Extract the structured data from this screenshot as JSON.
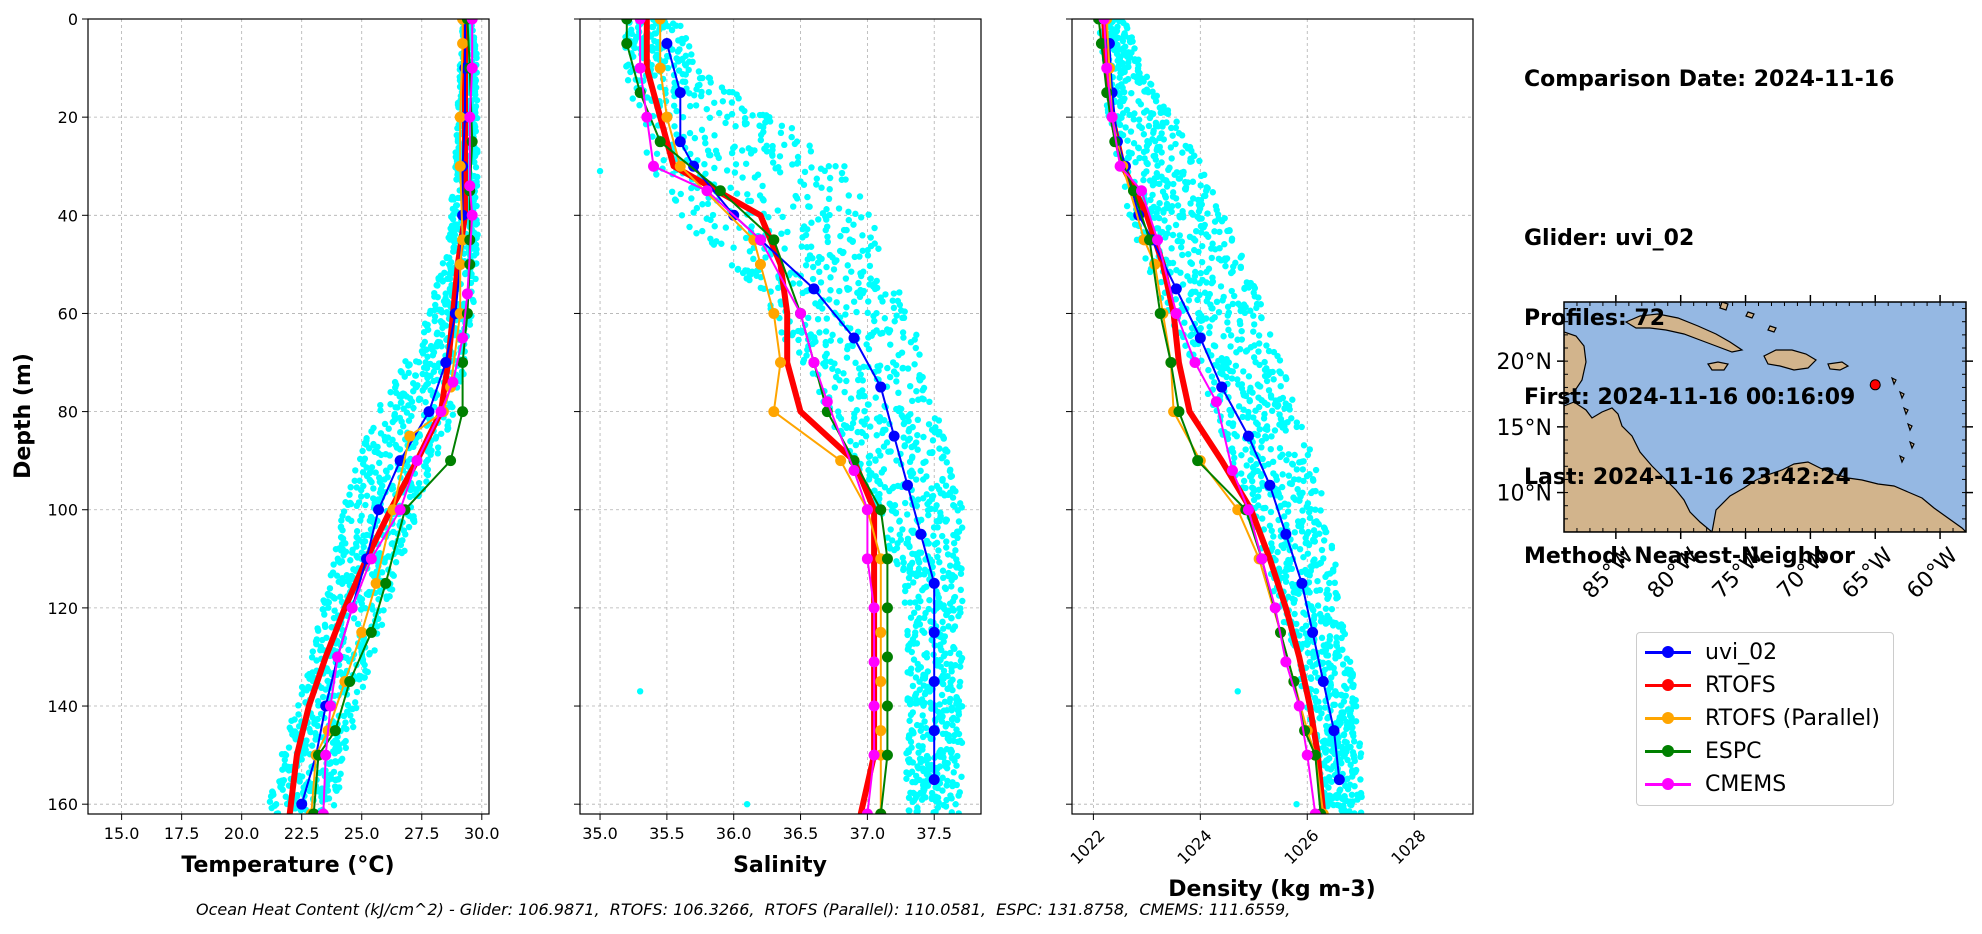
{
  "info": {
    "comparison_date": "Comparison Date: 2024-11-16",
    "glider": "Glider: uvi_02",
    "profiles": "Profiles: 72",
    "first": "First: 2024-11-16 00:16:09",
    "last": "Last: 2024-11-16 23:42:24",
    "method": "Method: Nearest-Neighbor"
  },
  "footer": "Ocean Heat Content (kJ/cm^2) - Glider: 106.9871,  RTOFS: 106.3266,  RTOFS (Parallel): 110.0581,  ESPC: 131.8758,  CMEMS: 111.6559,",
  "colors": {
    "glider": "#0000ff",
    "rtofs": "#ff0000",
    "rtofs_parallel": "#ffa500",
    "espc": "#008000",
    "cmems": "#ff00ff",
    "glider_scatter": "#00ffff",
    "ocean": "#95b8e3",
    "land": "#d2b48c",
    "grid": "#b0b0b0"
  },
  "legend": [
    {
      "label": "uvi_02",
      "color": "#0000ff"
    },
    {
      "label": "RTOFS",
      "color": "#ff0000"
    },
    {
      "label": "RTOFS (Parallel)",
      "color": "#ffa500"
    },
    {
      "label": "ESPC",
      "color": "#008000"
    },
    {
      "label": "CMEMS",
      "color": "#ff00ff"
    }
  ],
  "chart_data": [
    {
      "type": "line",
      "panel": "temperature",
      "xlabel": "Temperature (°C)",
      "ylabel": "Depth (m)",
      "xlim": [
        13.6,
        30.3
      ],
      "ylim": [
        162,
        0
      ],
      "xticks": [
        "15.0",
        "17.5",
        "20.0",
        "22.5",
        "25.0",
        "27.5",
        "30.0"
      ],
      "xtick_values": [
        15.0,
        17.5,
        20.0,
        22.5,
        25.0,
        27.5,
        30.0
      ],
      "yticks": [
        "0",
        "20",
        "40",
        "60",
        "80",
        "100",
        "120",
        "140",
        "160"
      ],
      "ytick_values": [
        0,
        20,
        40,
        60,
        80,
        100,
        120,
        140,
        160
      ],
      "grid": true,
      "scatter_band": {
        "depth": [
          0,
          10,
          20,
          30,
          40,
          50,
          60,
          70,
          80,
          90,
          100,
          110,
          120,
          130,
          140,
          150,
          162
        ],
        "low": [
          29.2,
          29.1,
          29.0,
          28.9,
          28.7,
          28.4,
          27.8,
          26.8,
          25.7,
          24.9,
          24.3,
          23.9,
          23.4,
          22.9,
          22.3,
          21.7,
          21.1
        ],
        "high": [
          29.7,
          29.8,
          29.8,
          29.8,
          29.8,
          29.8,
          29.6,
          29.3,
          28.8,
          28.0,
          27.3,
          26.6,
          26.0,
          25.4,
          24.8,
          24.3,
          23.8
        ]
      },
      "series": [
        {
          "name": "uvi_02",
          "color": "#0000ff",
          "width": 2,
          "x": [
            29.3,
            29.3,
            29.3,
            29.2,
            29.2,
            29.1,
            28.9,
            28.5,
            27.8,
            26.6,
            25.7,
            25.2,
            24.6,
            24.0,
            23.5,
            23.1,
            22.5
          ],
          "y": [
            0,
            10,
            20,
            30,
            40,
            50,
            60,
            70,
            80,
            90,
            100,
            110,
            120,
            130,
            140,
            150,
            160
          ]
        },
        {
          "name": "RTOFS",
          "color": "#ff0000",
          "width": 6,
          "markers": false,
          "x": [
            29.3,
            29.3,
            29.3,
            29.3,
            29.3,
            29.0,
            28.8,
            28.6,
            28.3,
            27.3,
            26.2,
            25.2,
            24.3,
            23.5,
            22.8,
            22.3,
            22.0
          ],
          "y": [
            0,
            10,
            20,
            30,
            40,
            50,
            60,
            70,
            80,
            90,
            100,
            110,
            120,
            130,
            140,
            150,
            162
          ]
        },
        {
          "name": "RTOFS (Parallel)",
          "color": "#ffa500",
          "width": 2,
          "x": [
            29.2,
            29.2,
            29.1,
            29.1,
            29.2,
            29.1,
            29.1,
            28.7,
            28.4,
            27.0,
            26.3,
            25.6,
            25.0,
            24.3,
            23.6,
            23.1,
            22.9
          ],
          "y": [
            0,
            5,
            20,
            30,
            45,
            50,
            60,
            75,
            80,
            85,
            100,
            115,
            125,
            135,
            145,
            150,
            162
          ]
        },
        {
          "name": "ESPC",
          "color": "#008000",
          "width": 2,
          "x": [
            29.4,
            29.5,
            29.6,
            29.5,
            29.5,
            29.5,
            29.4,
            29.2,
            29.2,
            28.7,
            26.8,
            26.0,
            25.4,
            24.5,
            23.9,
            23.2,
            23.0
          ],
          "y": [
            0,
            10,
            25,
            35,
            45,
            50,
            60,
            70,
            80,
            90,
            100,
            115,
            125,
            135,
            145,
            150,
            162
          ]
        },
        {
          "name": "CMEMS",
          "color": "#ff00ff",
          "width": 2,
          "x": [
            29.6,
            29.6,
            29.5,
            29.5,
            29.6,
            29.4,
            29.2,
            28.8,
            28.3,
            27.3,
            26.6,
            25.4,
            24.6,
            24.0,
            23.7,
            23.5,
            23.4
          ],
          "y": [
            0,
            10,
            20,
            34,
            40,
            56,
            65,
            74,
            80,
            90,
            100,
            110,
            120,
            130,
            140,
            150,
            162
          ]
        }
      ]
    },
    {
      "type": "line",
      "panel": "salinity",
      "xlabel": "Salinity",
      "xlim": [
        34.85,
        37.85
      ],
      "ylim": [
        162,
        0
      ],
      "xticks": [
        "35.0",
        "35.5",
        "36.0",
        "36.5",
        "37.0",
        "37.5"
      ],
      "xtick_values": [
        35.0,
        35.5,
        36.0,
        36.5,
        37.0,
        37.5
      ],
      "grid": true,
      "scatter_band": {
        "depth": [
          0,
          10,
          20,
          30,
          40,
          50,
          60,
          70,
          80,
          90,
          100,
          110,
          120,
          130,
          140,
          150,
          162
        ],
        "low": [
          35.2,
          35.2,
          35.3,
          35.4,
          35.6,
          36.0,
          36.3,
          36.5,
          36.7,
          36.9,
          37.1,
          37.2,
          37.3,
          37.3,
          37.3,
          37.3,
          37.3
        ],
        "high": [
          35.6,
          35.7,
          36.3,
          36.8,
          37.0,
          37.1,
          37.3,
          37.4,
          37.5,
          37.6,
          37.7,
          37.7,
          37.7,
          37.7,
          37.7,
          37.7,
          37.7
        ]
      },
      "outliers": [
        [
          35.0,
          31
        ],
        [
          35.3,
          137
        ],
        [
          36.1,
          160
        ]
      ],
      "series": [
        {
          "name": "uvi_02",
          "color": "#0000ff",
          "width": 2,
          "x": [
            35.5,
            35.6,
            35.6,
            35.7,
            36.0,
            36.2,
            36.6,
            36.9,
            37.1,
            37.2,
            37.3,
            37.4,
            37.5,
            37.5,
            37.5,
            37.5,
            37.5
          ],
          "y": [
            5,
            15,
            25,
            30,
            40,
            45,
            55,
            65,
            75,
            85,
            95,
            105,
            115,
            125,
            135,
            145,
            155
          ]
        },
        {
          "name": "RTOFS",
          "color": "#ff0000",
          "width": 6,
          "markers": false,
          "x": [
            35.35,
            35.35,
            35.45,
            35.55,
            36.2,
            36.35,
            36.4,
            36.4,
            36.5,
            36.9,
            37.05,
            37.05,
            37.05,
            37.05,
            37.05,
            37.05,
            36.95
          ],
          "y": [
            0,
            10,
            20,
            30,
            40,
            50,
            60,
            70,
            80,
            90,
            100,
            110,
            120,
            130,
            140,
            150,
            162
          ]
        },
        {
          "name": "RTOFS (Parallel)",
          "color": "#ffa500",
          "width": 2,
          "x": [
            35.45,
            35.45,
            35.5,
            35.6,
            36.15,
            36.2,
            36.3,
            36.35,
            36.3,
            36.8,
            37.0,
            37.1,
            37.1,
            37.1,
            37.1,
            37.1,
            37.1
          ],
          "y": [
            0,
            10,
            20,
            30,
            45,
            50,
            60,
            70,
            80,
            90,
            100,
            110,
            125,
            135,
            145,
            150,
            162
          ]
        },
        {
          "name": "ESPC",
          "color": "#008000",
          "width": 2,
          "x": [
            35.2,
            35.2,
            35.3,
            35.45,
            35.9,
            36.3,
            36.5,
            36.6,
            36.7,
            36.9,
            37.1,
            37.15,
            37.15,
            37.15,
            37.15,
            37.15,
            37.1
          ],
          "y": [
            0,
            5,
            15,
            25,
            35,
            45,
            60,
            70,
            80,
            90,
            100,
            110,
            120,
            130,
            140,
            150,
            162
          ]
        },
        {
          "name": "CMEMS",
          "color": "#ff00ff",
          "width": 2,
          "x": [
            35.3,
            35.3,
            35.35,
            35.4,
            35.8,
            36.2,
            36.5,
            36.6,
            36.7,
            36.9,
            37.0,
            37.0,
            37.05,
            37.05,
            37.05,
            37.05,
            37.0
          ],
          "y": [
            0,
            10,
            20,
            30,
            35,
            45,
            60,
            70,
            78,
            92,
            100,
            110,
            120,
            131,
            140,
            150,
            162
          ]
        }
      ]
    },
    {
      "type": "line",
      "panel": "density",
      "xlabel": "Density (kg m-3)",
      "xlim": [
        1021.6,
        1029.1
      ],
      "ylim": [
        162,
        0
      ],
      "xticks": [
        "1022",
        "1024",
        "1026",
        "1028"
      ],
      "xtick_values": [
        1022,
        1024,
        1026,
        1028
      ],
      "grid": true,
      "scatter_band": {
        "depth": [
          0,
          10,
          20,
          30,
          40,
          50,
          60,
          70,
          80,
          90,
          100,
          110,
          120,
          130,
          140,
          150,
          162
        ],
        "low": [
          1022.1,
          1022.2,
          1022.3,
          1022.5,
          1022.7,
          1023.0,
          1023.4,
          1023.9,
          1024.3,
          1024.6,
          1024.9,
          1025.2,
          1025.5,
          1025.8,
          1026.0,
          1026.2,
          1026.3
        ],
        "high": [
          1022.6,
          1022.9,
          1023.5,
          1024.0,
          1024.4,
          1024.8,
          1025.2,
          1025.5,
          1025.8,
          1026.1,
          1026.3,
          1026.5,
          1026.6,
          1026.8,
          1026.9,
          1027.0,
          1027.0
        ]
      },
      "outliers": [
        [
          1024.7,
          137
        ],
        [
          1025.8,
          160
        ]
      ],
      "series": [
        {
          "name": "uvi_02",
          "color": "#0000ff",
          "width": 2,
          "x": [
            1022.3,
            1022.35,
            1022.45,
            1022.6,
            1022.85,
            1023.1,
            1023.55,
            1024.0,
            1024.4,
            1024.9,
            1025.3,
            1025.6,
            1025.9,
            1026.1,
            1026.3,
            1026.5,
            1026.6
          ],
          "y": [
            5,
            15,
            25,
            30,
            40,
            45,
            55,
            65,
            75,
            85,
            95,
            105,
            115,
            125,
            135,
            145,
            155
          ]
        },
        {
          "name": "RTOFS",
          "color": "#ff0000",
          "width": 6,
          "markers": false,
          "x": [
            1022.2,
            1022.25,
            1022.35,
            1022.55,
            1023.0,
            1023.3,
            1023.5,
            1023.6,
            1023.8,
            1024.4,
            1024.95,
            1025.3,
            1025.6,
            1025.85,
            1026.05,
            1026.2,
            1026.3
          ],
          "y": [
            0,
            10,
            20,
            30,
            40,
            50,
            60,
            70,
            80,
            90,
            100,
            110,
            120,
            130,
            140,
            150,
            162
          ]
        },
        {
          "name": "RTOFS (Parallel)",
          "color": "#ffa500",
          "width": 2,
          "x": [
            1022.25,
            1022.3,
            1022.35,
            1022.55,
            1022.95,
            1023.15,
            1023.3,
            1023.45,
            1023.5,
            1024.0,
            1024.7,
            1025.1,
            1025.5,
            1025.75,
            1026.0,
            1026.15,
            1026.3
          ],
          "y": [
            0,
            10,
            20,
            30,
            45,
            50,
            60,
            70,
            80,
            90,
            100,
            110,
            125,
            135,
            145,
            150,
            162
          ]
        },
        {
          "name": "ESPC",
          "color": "#008000",
          "width": 2,
          "x": [
            1022.1,
            1022.15,
            1022.25,
            1022.4,
            1022.75,
            1023.05,
            1023.25,
            1023.45,
            1023.6,
            1023.95,
            1024.85,
            1025.15,
            1025.5,
            1025.75,
            1025.95,
            1026.15,
            1026.25
          ],
          "y": [
            0,
            5,
            15,
            25,
            35,
            45,
            60,
            70,
            80,
            90,
            100,
            110,
            125,
            135,
            145,
            150,
            162
          ]
        },
        {
          "name": "CMEMS",
          "color": "#ff00ff",
          "width": 2,
          "x": [
            1022.2,
            1022.25,
            1022.35,
            1022.5,
            1022.9,
            1023.2,
            1023.55,
            1023.9,
            1024.3,
            1024.6,
            1024.9,
            1025.15,
            1025.4,
            1025.6,
            1025.85,
            1026.0,
            1026.15
          ],
          "y": [
            0,
            10,
            20,
            30,
            35,
            45,
            60,
            70,
            78,
            92,
            100,
            110,
            120,
            131,
            140,
            150,
            162
          ]
        }
      ]
    },
    {
      "type": "map",
      "panel": "location",
      "xlim": [
        -89,
        -58
      ],
      "ylim": [
        7,
        24.5
      ],
      "xticks": [
        "85°W",
        "80°W",
        "75°W",
        "70°W",
        "65°W",
        "60°W"
      ],
      "xtick_values": [
        -85,
        -80,
        -75,
        -70,
        -65,
        -60
      ],
      "yticks": [
        "10°N",
        "15°N",
        "20°N"
      ],
      "ytick_values": [
        10,
        15,
        20
      ],
      "glider_position": [
        -65.0,
        18.2
      ]
    }
  ]
}
